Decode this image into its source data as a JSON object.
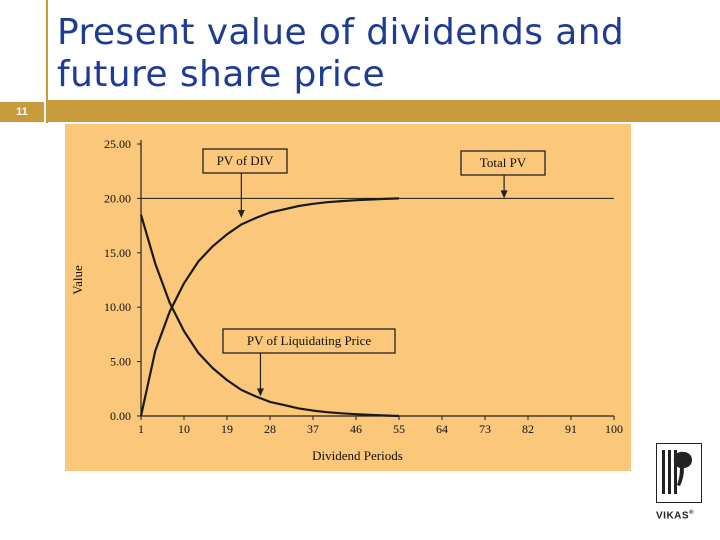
{
  "slide": {
    "number": "11",
    "title_line1": "Present value of dividends and",
    "title_line2": "future share price",
    "accent_color": "#c99a3c",
    "title_color": "#1f3c94"
  },
  "logo": {
    "name": "VIKAS",
    "mark": "®"
  },
  "chart_data": {
    "type": "line",
    "ylabel": "Value",
    "xlabel": "Dividend Periods",
    "ylim": [
      0,
      25
    ],
    "xlim": [
      1,
      100
    ],
    "background": "#fbc77a",
    "y_ticks": [
      "25.00",
      "20.00",
      "15.00",
      "10.00",
      "5.00",
      "0.00"
    ],
    "y_tick_values": [
      25,
      20,
      15,
      10,
      5,
      0
    ],
    "x_ticks": [
      "1",
      "10",
      "19",
      "28",
      "37",
      "46",
      "55",
      "64",
      "73",
      "82",
      "91",
      "100"
    ],
    "x_tick_values": [
      1,
      10,
      19,
      28,
      37,
      46,
      55,
      64,
      73,
      82,
      91,
      100
    ],
    "annotations": [
      {
        "text": "PV of DIV",
        "points_to": [
          22,
          18.2
        ]
      },
      {
        "text": "Total PV",
        "points_to": [
          77,
          20
        ]
      },
      {
        "text": "PV of Liquidating Price",
        "points_to": [
          26,
          1.8
        ]
      }
    ],
    "series": [
      {
        "name": "Total PV",
        "x": [
          1,
          100
        ],
        "y": [
          20,
          20
        ]
      },
      {
        "name": "PV of DIV",
        "x": [
          1,
          4,
          7,
          10,
          13,
          16,
          19,
          22,
          25,
          28,
          31,
          34,
          37,
          40,
          43,
          46,
          49,
          52,
          55
        ],
        "y": [
          0,
          6.0,
          9.6,
          12.2,
          14.2,
          15.6,
          16.7,
          17.6,
          18.2,
          18.7,
          19.0,
          19.3,
          19.5,
          19.65,
          19.75,
          19.83,
          19.9,
          19.95,
          20.0
        ]
      },
      {
        "name": "PV of Liquidating Price",
        "x": [
          1,
          4,
          7,
          10,
          13,
          16,
          19,
          22,
          25,
          28,
          31,
          34,
          37,
          40,
          43,
          46,
          49,
          52,
          55
        ],
        "y": [
          18.5,
          14.0,
          10.4,
          7.8,
          5.8,
          4.4,
          3.3,
          2.4,
          1.8,
          1.3,
          1.0,
          0.7,
          0.5,
          0.35,
          0.25,
          0.17,
          0.1,
          0.05,
          0.0
        ]
      }
    ]
  }
}
